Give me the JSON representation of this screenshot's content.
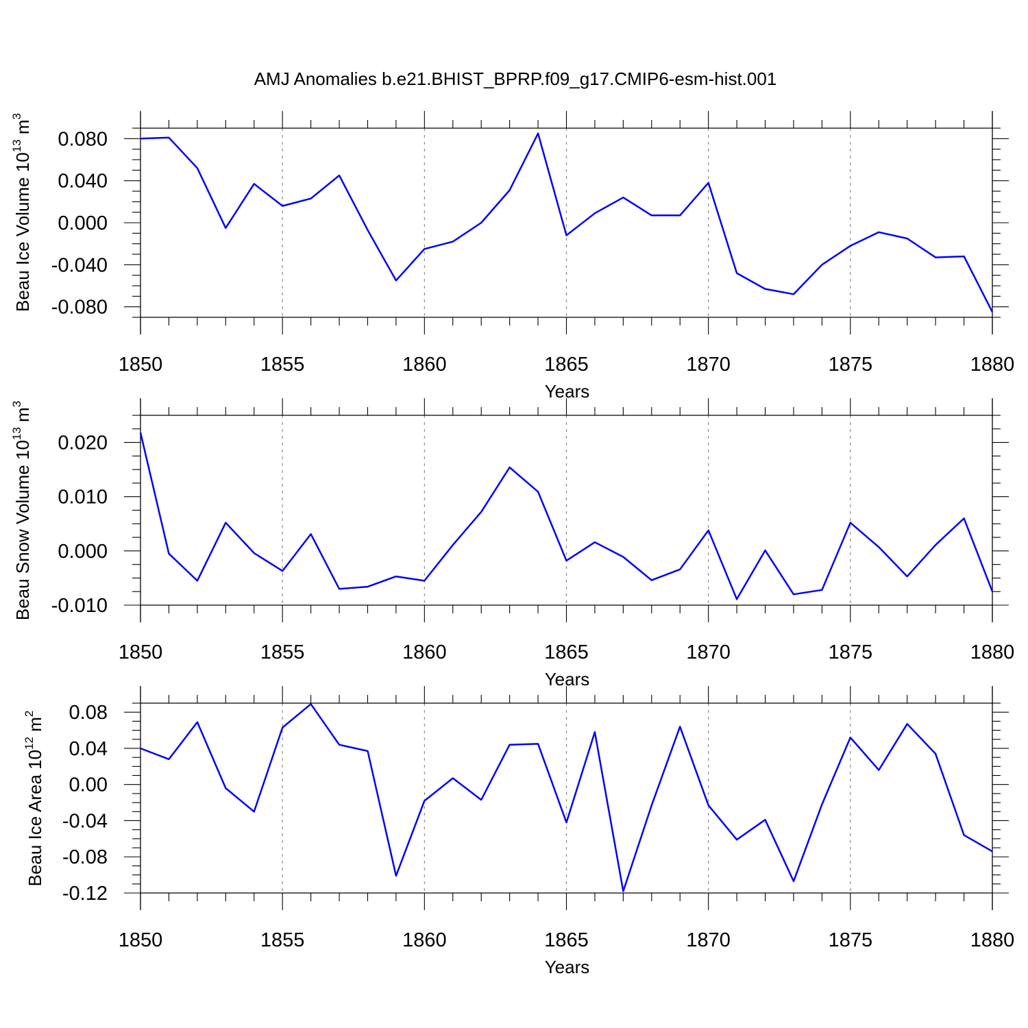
{
  "figure": {
    "title": "AMJ Anomalies b.e21.BHIST_BPRP.f09_g17.CMIP6-esm-hist.001"
  },
  "colors": {
    "series": "#0000ff",
    "grid": "#888888",
    "axes": "#000000"
  },
  "chart_data": [
    {
      "type": "line",
      "xlabel": "Years",
      "ylabel": "Beau Ice Volume 10",
      "ylabel_exp": "13",
      "ylabel_unit": " m",
      "ylabel_unit_exp": "3",
      "xlim": [
        1850,
        1880
      ],
      "ylim": [
        -0.09,
        0.09
      ],
      "xticks": [
        1850,
        1855,
        1860,
        1865,
        1870,
        1875,
        1880
      ],
      "xtick_labels": [
        "1850",
        "1855",
        "1860",
        "1865",
        "1870",
        "1875",
        "1880"
      ],
      "yticks": [
        -0.08,
        -0.04,
        0.0,
        0.04,
        0.08
      ],
      "ytick_labels": [
        "-0.080",
        "-0.040",
        "0.000",
        "0.040",
        "0.080"
      ],
      "grid": "dashed vertical at labeled years",
      "x": [
        1850,
        1851,
        1852,
        1853,
        1854,
        1855,
        1856,
        1857,
        1858,
        1859,
        1860,
        1861,
        1862,
        1863,
        1864,
        1865,
        1866,
        1867,
        1868,
        1869,
        1870,
        1871,
        1872,
        1873,
        1874,
        1875,
        1876,
        1877,
        1878,
        1879,
        1880
      ],
      "y": [
        0.08,
        0.081,
        0.052,
        -0.005,
        0.037,
        0.016,
        0.023,
        0.045,
        -0.007,
        -0.055,
        -0.025,
        -0.018,
        0.0,
        0.031,
        0.085,
        -0.012,
        0.009,
        0.024,
        0.007,
        0.007,
        0.038,
        -0.048,
        -0.063,
        -0.068,
        -0.04,
        -0.022,
        -0.009,
        -0.015,
        -0.033,
        -0.032,
        -0.085
      ]
    },
    {
      "type": "line",
      "xlabel": "Years",
      "ylabel": "Beau Snow Volume 10",
      "ylabel_exp": "13",
      "ylabel_unit": " m",
      "ylabel_unit_exp": "3",
      "xlim": [
        1850,
        1880
      ],
      "ylim": [
        -0.01,
        0.025
      ],
      "xticks": [
        1850,
        1855,
        1860,
        1865,
        1870,
        1875,
        1880
      ],
      "xtick_labels": [
        "1850",
        "1855",
        "1860",
        "1865",
        "1870",
        "1875",
        "1880"
      ],
      "yticks": [
        -0.01,
        0.0,
        0.01,
        0.02
      ],
      "ytick_labels": [
        "-0.010",
        "0.000",
        "0.010",
        "0.020"
      ],
      "grid": "dashed vertical at labeled years",
      "x": [
        1850,
        1851,
        1852,
        1853,
        1854,
        1855,
        1856,
        1857,
        1858,
        1859,
        1860,
        1861,
        1862,
        1863,
        1864,
        1865,
        1866,
        1867,
        1868,
        1869,
        1870,
        1871,
        1872,
        1873,
        1874,
        1875,
        1876,
        1877,
        1878,
        1879,
        1880
      ],
      "y": [
        0.0218,
        -0.0005,
        -0.0055,
        0.0052,
        -0.0004,
        -0.0037,
        0.0031,
        -0.007,
        -0.0066,
        -0.0047,
        -0.0055,
        0.0011,
        0.0072,
        0.0154,
        0.0109,
        -0.0018,
        0.0016,
        -0.0011,
        -0.0054,
        -0.0034,
        0.0038,
        -0.0089,
        0.0001,
        -0.008,
        -0.0072,
        0.0052,
        0.0007,
        -0.0047,
        0.0011,
        0.006,
        -0.0075
      ]
    },
    {
      "type": "line",
      "xlabel": "Years",
      "ylabel": "Beau Ice Area 10",
      "ylabel_exp": "12",
      "ylabel_unit": " m",
      "ylabel_unit_exp": "2",
      "xlim": [
        1850,
        1880
      ],
      "ylim": [
        -0.12,
        0.09
      ],
      "xticks": [
        1850,
        1855,
        1860,
        1865,
        1870,
        1875,
        1880
      ],
      "xtick_labels": [
        "1850",
        "1855",
        "1860",
        "1865",
        "1870",
        "1875",
        "1880"
      ],
      "yticks": [
        -0.12,
        -0.08,
        -0.04,
        0.0,
        0.04,
        0.08
      ],
      "ytick_labels": [
        "-0.12",
        "-0.08",
        "-0.04",
        "0.00",
        "0.04",
        "0.08"
      ],
      "grid": "dashed vertical at labeled years",
      "x": [
        1850,
        1851,
        1852,
        1853,
        1854,
        1855,
        1856,
        1857,
        1858,
        1859,
        1860,
        1861,
        1862,
        1863,
        1864,
        1865,
        1866,
        1867,
        1868,
        1869,
        1870,
        1871,
        1872,
        1873,
        1874,
        1875,
        1876,
        1877,
        1878,
        1879,
        1880
      ],
      "y": [
        0.04,
        0.028,
        0.069,
        -0.004,
        -0.03,
        0.063,
        0.089,
        0.044,
        0.037,
        -0.101,
        -0.018,
        0.007,
        -0.017,
        0.044,
        0.045,
        -0.042,
        0.058,
        -0.118,
        -0.023,
        0.064,
        -0.023,
        -0.061,
        -0.039,
        -0.107,
        -0.022,
        0.052,
        0.016,
        0.067,
        0.034,
        -0.056,
        -0.074
      ]
    }
  ]
}
